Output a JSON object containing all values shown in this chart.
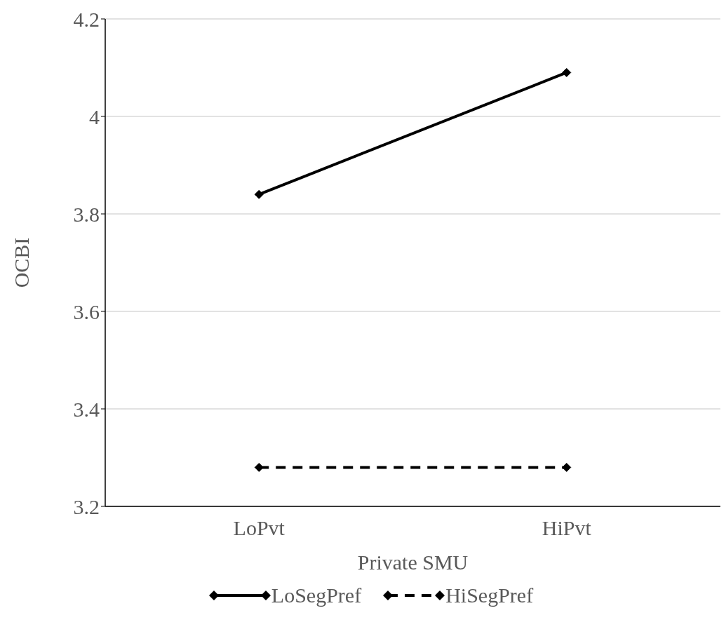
{
  "chart_data": {
    "type": "line",
    "xlabel": "Private SMU",
    "ylabel": "OCBI",
    "categories": [
      "LoPvt",
      "HiPvt"
    ],
    "series": [
      {
        "name": "LoSegPref",
        "color": "#000000",
        "values": [
          3.84,
          4.09
        ],
        "line_style": "solid"
      },
      {
        "name": "HiSegPref",
        "color": "#000000",
        "values": [
          3.28,
          3.28
        ],
        "line_style": "dashed"
      }
    ],
    "ylim": [
      3.2,
      4.2
    ],
    "yticks": [
      3.2,
      3.4,
      3.6,
      3.8,
      4,
      4.2
    ],
    "grid": "y",
    "legend": "bottom",
    "marker": "diamond"
  }
}
